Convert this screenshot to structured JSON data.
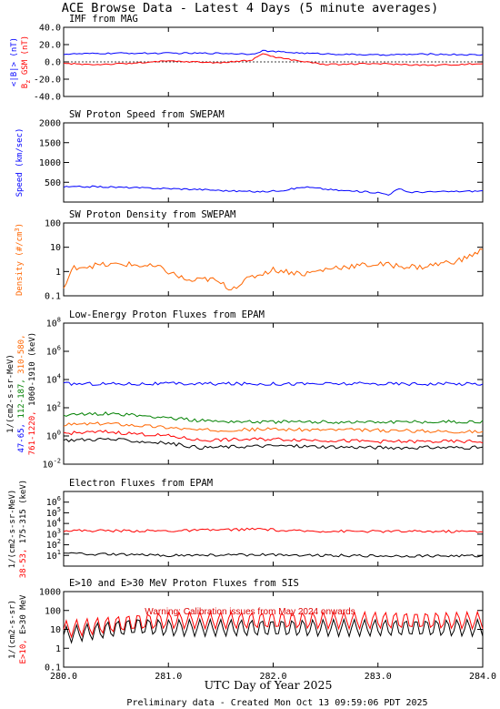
{
  "page": {
    "title": "ACE Browse Data - Latest 4 Days (5 minute averages)",
    "x_axis_title": "UTC Day of Year 2025",
    "footer": "Preliminary data - Created Mon Oct 13 09:59:06 PDT 2025",
    "warning": "Warning: Calibration issues from May 2024 onwards"
  },
  "chart_data": [
    {
      "type": "line",
      "title": "IMF from MAG",
      "ylabel_parts": [
        {
          "text": "<|B|> (nT)",
          "color": "#0000ff"
        },
        {
          "text": "B",
          "sub": "z",
          "tail": " GSM (nT)",
          "color": "#ff0000"
        }
      ],
      "scale": "linear",
      "ylim": [
        -40,
        40
      ],
      "yticks": [
        {
          "v": 40,
          "label": "40.0"
        },
        {
          "v": 20,
          "label": "20.0"
        },
        {
          "v": 0,
          "label": "0.0"
        },
        {
          "v": -20,
          "label": "-20.0"
        },
        {
          "v": -40,
          "label": "-40.0"
        }
      ],
      "xlim": [
        280,
        284
      ],
      "series": [
        {
          "color": "#0000ff",
          "x": [
            280.0,
            280.5,
            281.0,
            281.5,
            281.8,
            281.9,
            282.0,
            282.3,
            282.6,
            283.0,
            283.5,
            284.0
          ],
          "y": [
            9,
            10,
            10,
            10,
            9,
            13,
            12,
            10,
            9,
            8,
            9,
            8
          ]
        },
        {
          "color": "#ff0000",
          "x": [
            280.0,
            280.3,
            280.6,
            281.0,
            281.5,
            281.8,
            281.9,
            282.0,
            282.2,
            282.5,
            283.0,
            283.5,
            284.0
          ],
          "y": [
            -2,
            -3,
            -2,
            1,
            -1,
            2,
            10,
            6,
            2,
            -3,
            -2,
            -4,
            -2
          ]
        }
      ]
    },
    {
      "type": "line",
      "title": "SW Proton Speed from SWEPAM",
      "ylabel_parts": [
        {
          "text": "Speed (km/sec)",
          "color": "#0000ff"
        }
      ],
      "scale": "linear",
      "ylim": [
        0,
        2000
      ],
      "yticks": [
        {
          "v": 2000,
          "label": "2000"
        },
        {
          "v": 1500,
          "label": "1500"
        },
        {
          "v": 1000,
          "label": "1000"
        },
        {
          "v": 500,
          "label": "500"
        }
      ],
      "xlim": [
        280,
        284
      ],
      "series": [
        {
          "color": "#0000ff",
          "x": [
            280.0,
            280.3,
            280.7,
            281.0,
            281.3,
            281.6,
            281.9,
            282.1,
            282.3,
            282.6,
            283.0,
            283.1,
            283.2,
            283.3,
            283.6,
            284.0
          ],
          "y": [
            380,
            390,
            360,
            340,
            320,
            280,
            260,
            300,
            380,
            300,
            240,
            190,
            330,
            250,
            260,
            280
          ]
        }
      ]
    },
    {
      "type": "line",
      "title": "SW Proton Density from SWEPAM",
      "ylabel_parts": [
        {
          "text": "Density (#/cm",
          "sup": "3",
          "tail": ")",
          "color": "#ff6600"
        }
      ],
      "scale": "log",
      "ylim": [
        0.1,
        100
      ],
      "yticks": [
        {
          "v": 100,
          "label": "100"
        },
        {
          "v": 10,
          "label": "10"
        },
        {
          "v": 1,
          "label": "1"
        },
        {
          "v": 0.1,
          "label": "0.1"
        }
      ],
      "xlim": [
        280,
        284
      ],
      "series": [
        {
          "color": "#ff6600",
          "x": [
            280.0,
            280.1,
            280.3,
            280.6,
            280.9,
            281.2,
            281.4,
            281.6,
            281.8,
            282.0,
            282.3,
            282.6,
            283.0,
            283.4,
            283.8,
            284.0
          ],
          "y": [
            0.2,
            1.5,
            1.8,
            2.0,
            1.5,
            0.4,
            0.5,
            0.2,
            0.6,
            1.2,
            0.8,
            1.5,
            2.0,
            1.5,
            3.0,
            8.0
          ]
        }
      ]
    },
    {
      "type": "line",
      "title": "Low-Energy Proton Fluxes from EPAM",
      "ylabel_parts": [
        {
          "text": "47-65, ",
          "color": "#0000ff"
        },
        {
          "text": "112-187, ",
          "color": "#008000"
        },
        {
          "text": "310-580,",
          "color": "#ff6600"
        }
      ],
      "ylabel_line2": [
        {
          "text": "761-1220, ",
          "color": "#ff0000"
        },
        {
          "text": "1060-1910 (keV)",
          "color": "#000000"
        }
      ],
      "ylabel_line3": "1/(cm2-s-sr-MeV)",
      "scale": "log",
      "ylim": [
        0.01,
        100000000
      ],
      "yticks": [
        {
          "v": 100000000,
          "label": "10^8"
        },
        {
          "v": 1000000,
          "label": "10^6"
        },
        {
          "v": 10000,
          "label": "10^4"
        },
        {
          "v": 100,
          "label": "10^2"
        },
        {
          "v": 1,
          "label": "10^0"
        },
        {
          "v": 0.01,
          "label": "10^-2"
        }
      ],
      "xlim": [
        280,
        284
      ],
      "series": [
        {
          "color": "#0000ff",
          "x": [
            280.0,
            281.0,
            282.0,
            283.0,
            284.0
          ],
          "y": [
            5000,
            5000,
            5000,
            5000,
            5000
          ]
        },
        {
          "color": "#008000",
          "x": [
            280.0,
            280.4,
            281.0,
            281.3,
            282.0,
            283.0,
            284.0
          ],
          "y": [
            30,
            40,
            20,
            12,
            10,
            10,
            10
          ]
        },
        {
          "color": "#ff6600",
          "x": [
            280.0,
            280.4,
            281.0,
            281.3,
            282.0,
            283.0,
            284.0
          ],
          "y": [
            6,
            8,
            4,
            2.5,
            3,
            2.5,
            2
          ]
        },
        {
          "color": "#ff0000",
          "x": [
            280.0,
            280.4,
            281.0,
            281.3,
            282.0,
            283.0,
            284.0
          ],
          "y": [
            1.5,
            2,
            1,
            0.5,
            0.6,
            0.4,
            0.4
          ]
        },
        {
          "color": "#000000",
          "x": [
            280.0,
            280.4,
            281.0,
            281.3,
            282.0,
            283.0,
            284.0
          ],
          "y": [
            0.5,
            0.6,
            0.3,
            0.15,
            0.2,
            0.15,
            0.15
          ]
        }
      ]
    },
    {
      "type": "line",
      "title": "Electron Fluxes from EPAM",
      "ylabel_parts": [
        {
          "text": "38-53, ",
          "color": "#ff0000"
        },
        {
          "text": "175-315 (keV)",
          "color": "#000000"
        }
      ],
      "ylabel_line2_plain": "1/(cm2-s-sr-MeV)",
      "scale": "log",
      "ylim": [
        1,
        10000000
      ],
      "yticks": [
        {
          "v": 1000000,
          "label": "10^6"
        },
        {
          "v": 100000,
          "label": "10^5"
        },
        {
          "v": 10000,
          "label": "10^4"
        },
        {
          "v": 1000,
          "label": "10^3"
        },
        {
          "v": 100,
          "label": "10^2"
        },
        {
          "v": 10,
          "label": "10^1"
        }
      ],
      "xlim": [
        280,
        284
      ],
      "series": [
        {
          "color": "#ff0000",
          "x": [
            280.0,
            281.0,
            281.9,
            282.0,
            282.1,
            283.0,
            284.0
          ],
          "y": [
            2200,
            2000,
            3000,
            2500,
            2000,
            1800,
            1800
          ]
        },
        {
          "color": "#000000",
          "x": [
            280.0,
            281.0,
            282.0,
            283.0,
            284.0
          ],
          "y": [
            15,
            10,
            12,
            9,
            9
          ]
        }
      ]
    },
    {
      "type": "line",
      "title": "E>10 and E>30 MeV Proton Fluxes from SIS",
      "ylabel_parts": [
        {
          "text": "E>10, ",
          "color": "#ff0000"
        },
        {
          "text": "E>30 MeV",
          "color": "#000000"
        }
      ],
      "ylabel_line2_plain": "1/(cm2-s-sr)",
      "scale": "log",
      "ylim": [
        0.1,
        1000
      ],
      "yticks": [
        {
          "v": 1000,
          "label": "1000"
        },
        {
          "v": 100,
          "label": "100"
        },
        {
          "v": 10,
          "label": "10"
        },
        {
          "v": 1,
          "label": "1"
        },
        {
          "v": 0.1,
          "label": "0.1"
        }
      ],
      "xlim": [
        280,
        284
      ],
      "series": [
        {
          "color": "#ff0000",
          "x": [
            280.0,
            280.7,
            281.0,
            282.0,
            283.0,
            284.0
          ],
          "y": [
            10,
            25,
            30,
            30,
            30,
            30
          ]
        },
        {
          "color": "#000000",
          "x": [
            280.0,
            280.7,
            281.0,
            282.0,
            283.0,
            284.0
          ],
          "y": [
            5,
            15,
            12,
            12,
            12,
            12
          ]
        }
      ]
    }
  ],
  "x_ticks": [
    {
      "v": 280,
      "label": "280.0"
    },
    {
      "v": 281,
      "label": "281.0"
    },
    {
      "v": 282,
      "label": "282.0"
    },
    {
      "v": 283,
      "label": "283.0"
    },
    {
      "v": 284,
      "label": "284.0"
    }
  ]
}
